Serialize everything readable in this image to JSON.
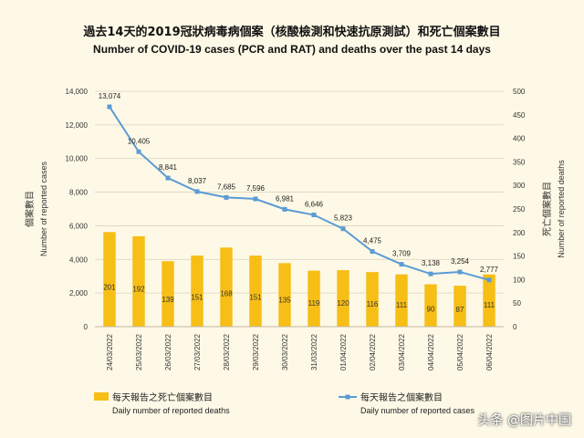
{
  "title_zh": "過去14天的2019冠狀病毒病個案（核酸檢測和快速抗原測試）和死亡個案數目",
  "title_en": "Number of COVID-19 cases (PCR and RAT) and deaths over the past 14 days",
  "watermark": "头条 @图片中国",
  "chart_data": {
    "type": "bar-line",
    "categories": [
      "24/03/2022",
      "25/03/2022",
      "26/03/2022",
      "27/03/2022",
      "28/03/2022",
      "29/03/2022",
      "30/03/2022",
      "31/03/2022",
      "01/04/2022",
      "02/04/2022",
      "03/04/2022",
      "04/04/2022",
      "05/04/2022",
      "06/04/2022"
    ],
    "series": [
      {
        "name_zh": "每天報告之死亡個案數目",
        "name_en": "Daily number of reported deaths",
        "type": "bar",
        "axis": "right",
        "color": "#F7BE16",
        "values": [
          201,
          192,
          139,
          151,
          168,
          151,
          135,
          119,
          120,
          116,
          111,
          90,
          87,
          111
        ]
      },
      {
        "name_zh": "每天報告之個案數目",
        "name_en": "Daily number of reported cases",
        "type": "line",
        "axis": "left",
        "color": "#5B9BD5",
        "values": [
          13074,
          10405,
          8841,
          8037,
          7685,
          7596,
          6981,
          6646,
          5823,
          4475,
          3709,
          3138,
          3254,
          2777
        ]
      }
    ],
    "y_left": {
      "label_zh": "個案數目",
      "label_en": "Number of reported cases",
      "range": [
        0,
        14000
      ],
      "ticks": [
        0,
        2000,
        4000,
        6000,
        8000,
        10000,
        12000,
        14000
      ]
    },
    "y_right": {
      "label_zh": "死亡個案數目",
      "label_en": "Number of reported deaths",
      "range": [
        0,
        500
      ],
      "ticks": [
        0,
        50,
        100,
        150,
        200,
        250,
        300,
        350,
        400,
        450,
        500
      ]
    },
    "grid": true,
    "legend_position": "bottom"
  }
}
